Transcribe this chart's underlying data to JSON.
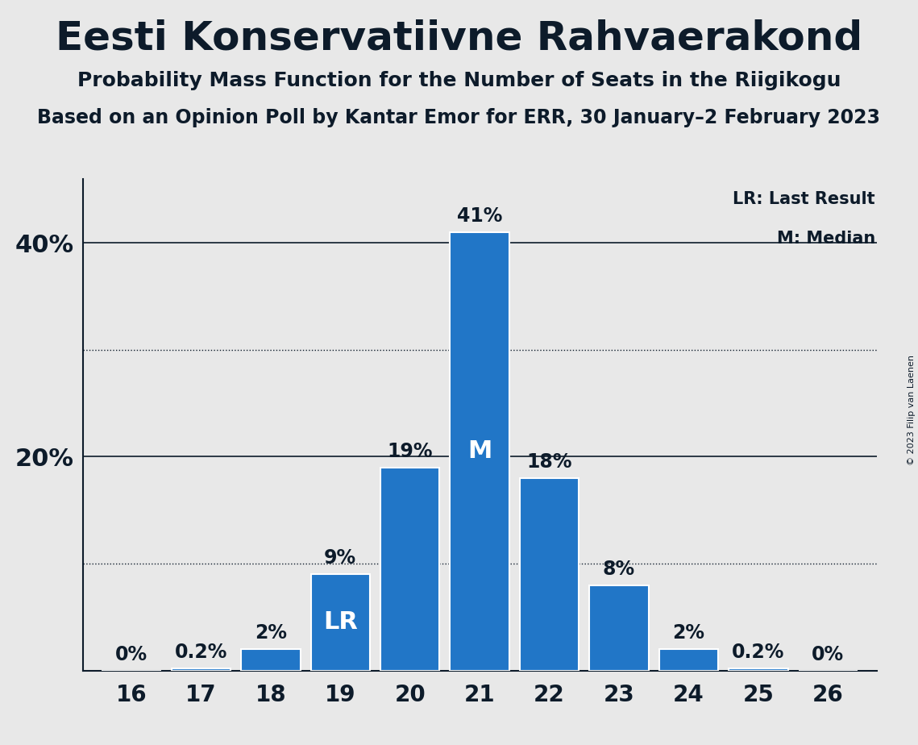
{
  "title": "Eesti Konservatiivne Rahvaerakond",
  "subtitle1": "Probability Mass Function for the Number of Seats in the Riigikogu",
  "subtitle2": "Based on an Opinion Poll by Kantar Emor for ERR, 30 January–2 February 2023",
  "copyright": "© 2023 Filip van Laenen",
  "seats": [
    16,
    17,
    18,
    19,
    20,
    21,
    22,
    23,
    24,
    25,
    26
  ],
  "probabilities": [
    0.0,
    0.2,
    2.0,
    9.0,
    19.0,
    41.0,
    18.0,
    8.0,
    2.0,
    0.2,
    0.0
  ],
  "bar_color": "#2176c7",
  "bar_edge_color": "#ffffff",
  "lr_seat": 19,
  "median_seat": 21,
  "ylim": [
    0,
    46
  ],
  "dotted_gridlines": [
    10,
    30
  ],
  "solid_gridlines": [
    20,
    40
  ],
  "bg_color": "#e8e8e8",
  "text_color": "#0d1b2a",
  "legend_lr": "LR: Last Result",
  "legend_m": "M: Median",
  "bar_label_fontsize": 17,
  "title_fontsize": 36,
  "subtitle1_fontsize": 18,
  "subtitle2_fontsize": 17
}
